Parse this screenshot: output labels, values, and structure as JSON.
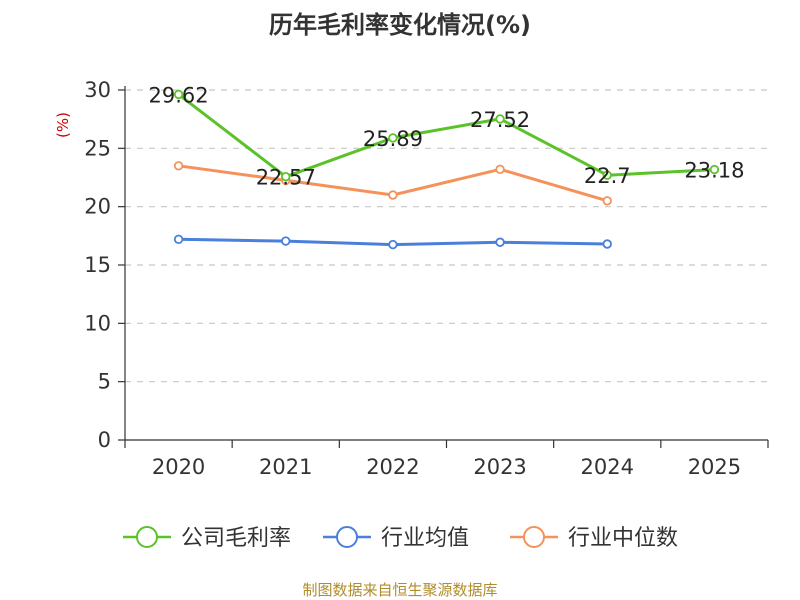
{
  "chart_data": {
    "type": "line",
    "title": "历年毛利率变化情况(%)",
    "ylabel": "(%)",
    "xlabel": "",
    "categories": [
      "2020",
      "2021",
      "2022",
      "2023",
      "2024",
      "2025"
    ],
    "ylim": [
      0,
      30
    ],
    "yticks": [
      0,
      5,
      10,
      15,
      20,
      25,
      30
    ],
    "grid": true,
    "legend_position": "bottom",
    "series": [
      {
        "name": "公司毛利率",
        "color": "#5cc22a",
        "values": [
          29.62,
          22.57,
          25.89,
          27.52,
          22.7,
          23.18
        ],
        "labels": [
          "29.62",
          "22.57",
          "25.89",
          "27.52",
          "22.7",
          "23.18"
        ]
      },
      {
        "name": "行业均值",
        "color": "#4a7fdc",
        "values": [
          17.2,
          17.05,
          16.75,
          16.95,
          16.8,
          null
        ]
      },
      {
        "name": "行业中位数",
        "color": "#f4925a",
        "values": [
          23.5,
          22.25,
          21.0,
          23.2,
          20.5,
          null
        ]
      }
    ],
    "source": "制图数据来自恒生聚源数据库"
  }
}
